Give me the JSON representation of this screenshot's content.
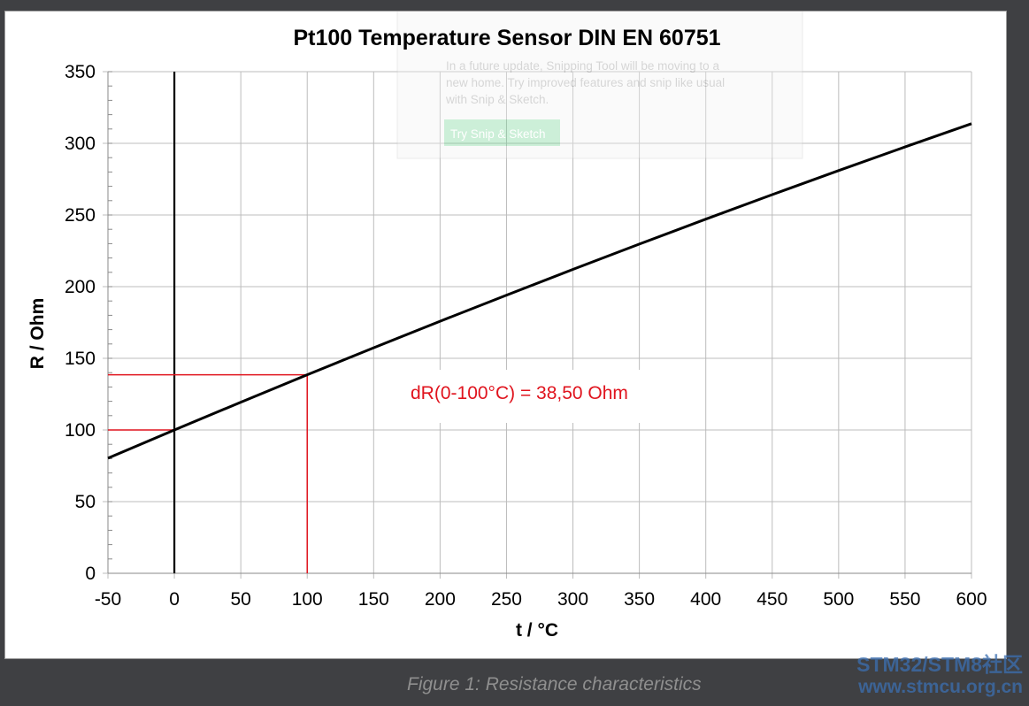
{
  "chart_data": {
    "type": "line",
    "title": "Pt100 Temperature Sensor DIN EN 60751",
    "xlabel": "t / °C",
    "ylabel": "R / Ohm",
    "xlim": [
      -50,
      600
    ],
    "ylim": [
      0,
      350
    ],
    "x_ticks": [
      -50,
      0,
      50,
      100,
      150,
      200,
      250,
      300,
      350,
      400,
      450,
      500,
      550,
      600
    ],
    "y_ticks": [
      0,
      50,
      100,
      150,
      200,
      250,
      300,
      350
    ],
    "grid": true,
    "series": [
      {
        "color": "#000000",
        "x": [
          -50,
          0,
          50,
          100,
          150,
          200,
          250,
          300,
          350,
          400,
          450,
          500,
          550,
          600
        ],
        "y": [
          80.31,
          100.0,
          119.4,
          138.5,
          157.33,
          175.86,
          194.1,
          212.05,
          229.72,
          247.09,
          264.18,
          280.98,
          297.49,
          313.71
        ]
      }
    ],
    "markers": [
      {
        "x": 0,
        "y": 100.0,
        "color": "#e0141e"
      },
      {
        "x": 100,
        "y": 138.5,
        "color": "#e0141e"
      }
    ],
    "vertical_line_x": 0,
    "annotation": {
      "text": "dR(0-100°C) = 38,50 Ohm",
      "color": "#e0141e"
    }
  },
  "overlay_toast": {
    "message_line1": "In a future update, Snipping Tool will be moving to a",
    "message_line2": "new home. Try improved features and snip like usual",
    "message_line3": "with Snip & Sketch.",
    "button_label": "Try Snip & Sketch"
  },
  "caption": "Figure 1: Resistance characteristics",
  "watermark": {
    "line1": "STM32/STM8社区",
    "line2": "www.stmcu.org.cn"
  },
  "colors": {
    "background": "#3f4043",
    "chart_bg": "#ffffff",
    "grid": "#bcbcbc",
    "curve": "#000000",
    "annotation": "#e0141e",
    "watermark": "#3c6fb1"
  }
}
